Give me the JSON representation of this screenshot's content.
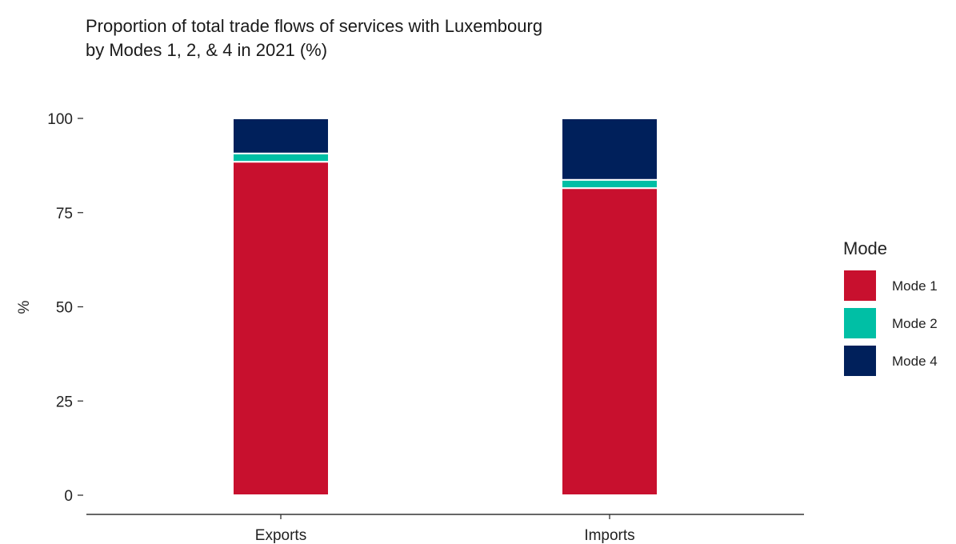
{
  "chart_data": {
    "type": "bar",
    "stacked": true,
    "title": "Proportion of total trade flows of services with Luxembourg\nby Modes 1, 2, & 4 in 2021 (%)",
    "xlabel": "",
    "ylabel": "%",
    "ylim": [
      0,
      100
    ],
    "yticks": [
      0,
      25,
      50,
      75,
      100
    ],
    "categories": [
      "Exports",
      "Imports"
    ],
    "series": [
      {
        "name": "Mode 1",
        "color": "#c8102e",
        "values": [
          88.5,
          81.5
        ]
      },
      {
        "name": "Mode 2",
        "color": "#00bfa5",
        "values": [
          2.2,
          2.2
        ]
      },
      {
        "name": "Mode 4",
        "color": "#00205b",
        "values": [
          9.3,
          16.3
        ]
      }
    ],
    "legend": {
      "title": "Mode",
      "position": "right"
    },
    "grid": false
  }
}
